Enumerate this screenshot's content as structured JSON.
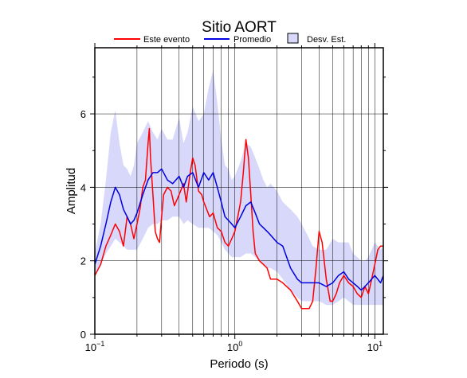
{
  "chart_data": {
    "type": "line",
    "title": "Sitio AORT",
    "xlabel": "Periodo (s)",
    "ylabel": "Amplitud",
    "xscale": "log",
    "xlim": [
      0.1,
      11.5
    ],
    "ylim": [
      0,
      7.8
    ],
    "grid": true,
    "legend_position": "top",
    "x_ticks": [
      {
        "value": 0.1,
        "base": "10",
        "exp": "−1"
      },
      {
        "value": 1,
        "label": "10",
        "exp": "0"
      },
      {
        "value": 10,
        "base": "10",
        "exp": "1"
      }
    ],
    "y_ticks": [
      0,
      2,
      4,
      6
    ],
    "series": [
      {
        "name": "Este evento",
        "color": "#ff0000",
        "x": [
          0.1,
          0.11,
          0.12,
          0.13,
          0.14,
          0.15,
          0.16,
          0.17,
          0.18,
          0.19,
          0.2,
          0.21,
          0.22,
          0.23,
          0.24,
          0.245,
          0.25,
          0.26,
          0.27,
          0.28,
          0.29,
          0.3,
          0.31,
          0.33,
          0.35,
          0.37,
          0.4,
          0.43,
          0.45,
          0.48,
          0.5,
          0.52,
          0.55,
          0.58,
          0.6,
          0.63,
          0.66,
          0.7,
          0.75,
          0.8,
          0.85,
          0.9,
          0.95,
          1.0,
          1.05,
          1.1,
          1.15,
          1.2,
          1.25,
          1.3,
          1.35,
          1.4,
          1.5,
          1.6,
          1.7,
          1.8,
          2.0,
          2.2,
          2.5,
          2.8,
          3.0,
          3.2,
          3.4,
          3.6,
          3.8,
          4.0,
          4.2,
          4.5,
          4.8,
          5.0,
          5.3,
          5.6,
          6.0,
          6.5,
          7.0,
          7.5,
          8.0,
          8.5,
          9.0,
          9.5,
          10.0,
          10.5,
          11.0,
          11.5
        ],
        "values": [
          1.6,
          1.9,
          2.4,
          2.7,
          3.0,
          2.8,
          2.4,
          3.2,
          3.0,
          2.6,
          3.0,
          3.4,
          4.0,
          4.2,
          5.2,
          5.6,
          4.8,
          3.8,
          2.8,
          2.6,
          2.5,
          3.2,
          3.8,
          4.0,
          3.9,
          3.5,
          3.8,
          4.1,
          3.6,
          4.4,
          4.8,
          4.6,
          3.9,
          3.8,
          3.6,
          3.4,
          3.2,
          3.3,
          2.9,
          2.8,
          2.5,
          2.4,
          2.6,
          2.8,
          3.2,
          3.6,
          4.4,
          5.3,
          4.8,
          3.8,
          2.8,
          2.2,
          2.0,
          1.9,
          1.8,
          1.5,
          1.5,
          1.4,
          1.2,
          0.9,
          0.7,
          0.7,
          0.7,
          0.9,
          1.8,
          2.8,
          2.5,
          1.5,
          0.9,
          0.9,
          1.1,
          1.4,
          1.6,
          1.4,
          1.3,
          1.1,
          1.0,
          1.3,
          1.1,
          1.5,
          1.9,
          2.3,
          2.4,
          2.4
        ]
      },
      {
        "name": "Promedio",
        "color": "#0000e0",
        "x": [
          0.1,
          0.11,
          0.12,
          0.13,
          0.14,
          0.15,
          0.16,
          0.17,
          0.18,
          0.19,
          0.2,
          0.22,
          0.24,
          0.26,
          0.28,
          0.3,
          0.33,
          0.36,
          0.4,
          0.43,
          0.46,
          0.5,
          0.55,
          0.6,
          0.65,
          0.7,
          0.75,
          0.8,
          0.85,
          0.9,
          0.95,
          1.0,
          1.1,
          1.2,
          1.3,
          1.4,
          1.5,
          1.6,
          1.7,
          1.8,
          2.0,
          2.2,
          2.5,
          2.8,
          3.0,
          3.3,
          3.6,
          4.0,
          4.5,
          5.0,
          5.5,
          6.0,
          6.5,
          7.0,
          7.5,
          8.0,
          8.5,
          9.0,
          10.0,
          11.0,
          11.5
        ],
        "values": [
          1.9,
          2.4,
          3.0,
          3.6,
          4.0,
          3.8,
          3.4,
          3.2,
          3.0,
          3.1,
          3.3,
          3.8,
          4.2,
          4.4,
          4.4,
          4.5,
          4.2,
          4.1,
          4.3,
          4.0,
          4.3,
          4.4,
          4.0,
          4.4,
          4.2,
          4.4,
          4.0,
          3.6,
          3.2,
          3.1,
          3.0,
          2.9,
          3.2,
          3.5,
          3.6,
          3.3,
          3.0,
          2.9,
          2.8,
          2.7,
          2.5,
          2.4,
          1.8,
          1.5,
          1.4,
          1.4,
          1.4,
          1.4,
          1.3,
          1.4,
          1.6,
          1.7,
          1.5,
          1.4,
          1.3,
          1.2,
          1.3,
          1.4,
          1.6,
          1.4,
          1.6
        ]
      }
    ],
    "band": {
      "name": "Desv. Est.",
      "color": "#d8d8fa",
      "edge_color": "#000000",
      "x": [
        0.1,
        0.11,
        0.12,
        0.13,
        0.14,
        0.15,
        0.16,
        0.17,
        0.18,
        0.19,
        0.2,
        0.22,
        0.24,
        0.26,
        0.28,
        0.3,
        0.33,
        0.36,
        0.4,
        0.43,
        0.46,
        0.5,
        0.55,
        0.6,
        0.65,
        0.7,
        0.75,
        0.8,
        0.85,
        0.9,
        0.95,
        1.0,
        1.1,
        1.2,
        1.3,
        1.4,
        1.5,
        1.6,
        1.7,
        1.8,
        2.0,
        2.2,
        2.5,
        2.8,
        3.0,
        3.3,
        3.6,
        4.0,
        4.5,
        5.0,
        5.5,
        6.0,
        6.5,
        7.0,
        7.5,
        8.0,
        8.5,
        9.0,
        10.0,
        11.0,
        11.5
      ],
      "upper": [
        2.2,
        3.0,
        4.2,
        5.5,
        6.1,
        5.2,
        4.6,
        4.5,
        4.3,
        4.6,
        5.2,
        5.5,
        5.8,
        5.5,
        5.3,
        5.6,
        5.3,
        5.3,
        5.9,
        5.2,
        5.5,
        6.2,
        5.8,
        6.0,
        6.7,
        7.2,
        6.3,
        5.3,
        4.6,
        4.5,
        4.2,
        4.3,
        4.7,
        5.2,
        5.1,
        4.8,
        4.5,
        4.2,
        4.0,
        4.1,
        3.9,
        3.6,
        3.4,
        3.2,
        3.0,
        2.7,
        2.4,
        2.3,
        2.3,
        2.6,
        2.5,
        2.5,
        2.5,
        2.2,
        2.1,
        2.0,
        2.0,
        2.1,
        2.5,
        2.3,
        2.4
      ],
      "lower": [
        1.6,
        1.9,
        2.2,
        2.4,
        2.6,
        2.5,
        2.4,
        2.3,
        2.3,
        2.3,
        2.3,
        2.6,
        2.9,
        3.0,
        3.0,
        3.1,
        3.1,
        3.2,
        3.2,
        3.0,
        3.1,
        3.0,
        2.9,
        2.9,
        2.9,
        2.8,
        2.7,
        2.5,
        2.3,
        2.2,
        2.1,
        2.1,
        2.1,
        2.2,
        2.2,
        2.1,
        2.0,
        1.9,
        1.8,
        1.8,
        1.7,
        1.5,
        1.2,
        1.0,
        0.9,
        0.9,
        0.9,
        0.9,
        0.8,
        0.8,
        0.9,
        1.0,
        0.9,
        0.8,
        0.8,
        0.8,
        0.8,
        0.8,
        0.8,
        0.8,
        0.8
      ]
    }
  }
}
